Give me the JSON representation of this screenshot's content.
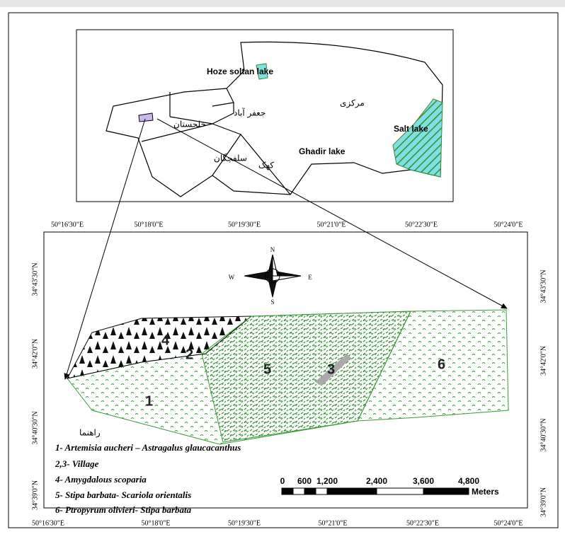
{
  "inset": {
    "labels": [
      "Hoze soltan lake",
      "مرکزی",
      "جعفر آباد",
      "خلجستان",
      "سلفچگان",
      "کهک",
      "Salt lake",
      "Ghadir lake"
    ]
  },
  "map": {
    "top_lon": [
      "50°16'30\"E",
      "50°18'0\"E",
      "50°19'30\"E",
      "50°21'0\"E",
      "50°22'30\"E",
      "50°24'0\"E"
    ],
    "bottom_lon": [
      "50°16'30\"E",
      "50°18'0\"E",
      "50°19'30\"E",
      "50°21'0\"E",
      "50°22'30\"E",
      "50°24'0\"E"
    ],
    "left_lat": [
      "34°43'30\"N",
      "34°42'0\"N",
      "34°40'30\"N",
      "34°39'0\"N"
    ],
    "right_lat": [
      "34°43'30\"N",
      "34°42'0\"N",
      "34°40'30\"N",
      "34°39'0\"N"
    ],
    "compass": {
      "n": "N",
      "s": "S",
      "e": "E",
      "w": "W"
    },
    "zones": {
      "z1": "1",
      "z2": "2",
      "z3": "3",
      "z4": "4",
      "z5": "5",
      "z6": "6"
    }
  },
  "legend": {
    "title": "راهنما",
    "items": [
      "1- Artemisia aucheri – Astragalus glaucacanthus",
      "2,3- Village",
      "4- Amygdalous scoparia",
      "5- Stipa barbata- Scariola orientalis",
      "6- Ptropyrum olivieri- Stipa barbata"
    ]
  },
  "scale": {
    "labels": [
      "0",
      "600",
      "1,200",
      "2,400",
      "3,600",
      "4,800"
    ],
    "unit": "Meters"
  }
}
